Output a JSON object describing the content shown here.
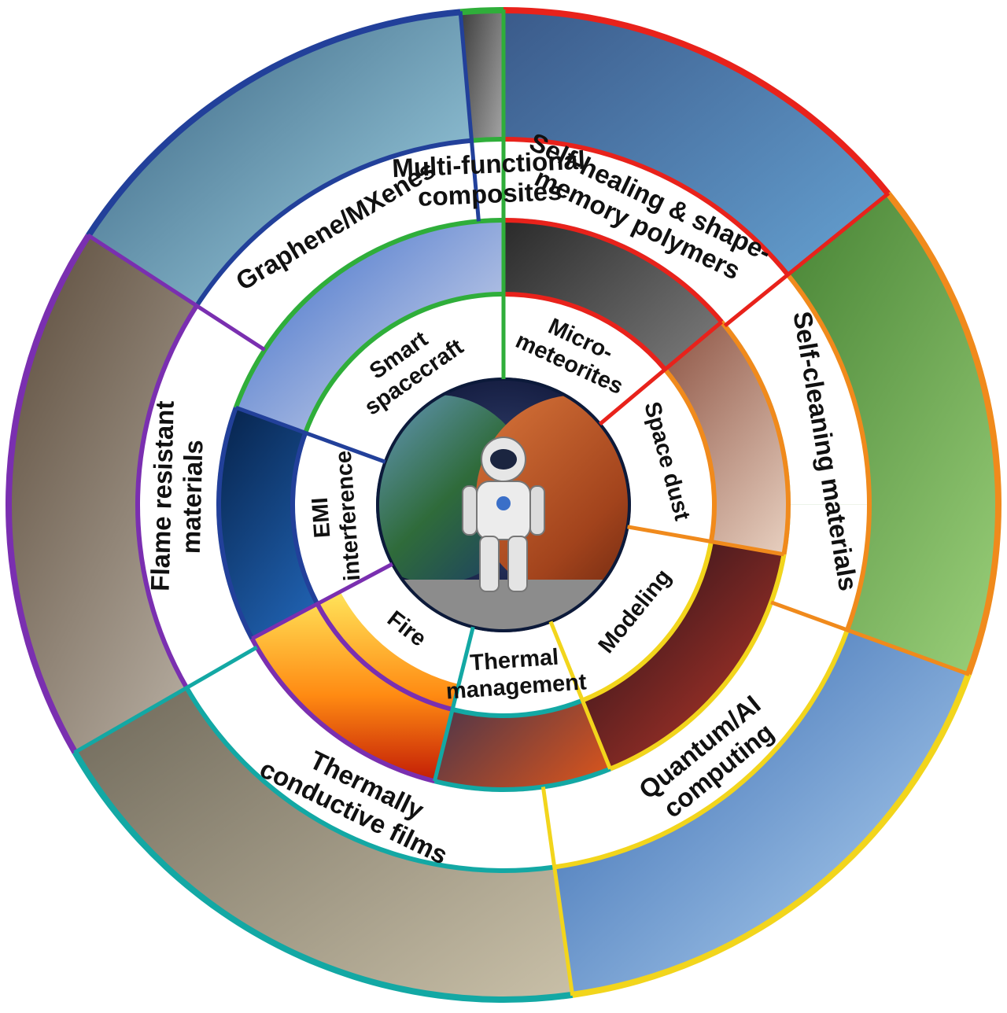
{
  "diagram": {
    "center": {
      "icon": "astronaut-icon",
      "scene": "earth-mars-planets"
    },
    "outer_ring": [
      {
        "lines": [
          "Self-healing & shape-",
          "memory polymers"
        ],
        "color": "#e8221b",
        "photo": "scuba-researcher-molecule"
      },
      {
        "lines": [
          "Self-cleaning materials"
        ],
        "color": "#f08a1c",
        "photo": "water-droplets-on-leaves"
      },
      {
        "lines": [
          "Quantum/AI",
          "computing"
        ],
        "color": "#f2d51c",
        "photo": "robot-with-chemical-formulas"
      },
      {
        "lines": [
          "Thermally",
          "conductive films"
        ],
        "color": "#13a8a4",
        "photo": "spacecraft-capsule-interior"
      },
      {
        "lines": [
          "Flame resistant",
          "materials"
        ],
        "color": "#7a2fb0",
        "photo": "firefighter-suits"
      },
      {
        "lines": [
          "Graphene/MXenes"
        ],
        "color": "#22409a",
        "photo": "graphene-lattice"
      },
      {
        "lines": [
          "Multi-functional",
          "composites"
        ],
        "color": "#2fae3a",
        "photo": "composite-grid-structure"
      }
    ],
    "inner_ring": [
      {
        "lines": [
          "Micro-",
          "meteorites"
        ],
        "color": "#e8221b",
        "photo": "meteorite-impact-crater"
      },
      {
        "lines": [
          "Space dust"
        ],
        "color": "#f08a1c",
        "photo": "dust-cloud"
      },
      {
        "lines": [
          "Modeling"
        ],
        "color": "#f2d51c",
        "photo": "molecular-model"
      },
      {
        "lines": [
          "Thermal",
          "management"
        ],
        "color": "#13a8a4",
        "photo": "heat-flare"
      },
      {
        "lines": [
          "Fire"
        ],
        "color": "#7a2fb0",
        "photo": "flames"
      },
      {
        "lines": [
          "EMI",
          "interference"
        ],
        "color": "#22409a",
        "photo": "electric-lightning"
      },
      {
        "lines": [
          "Smart",
          "spacecraft"
        ],
        "color": "#2fae3a",
        "photo": "smart-spacecraft-module"
      }
    ]
  }
}
